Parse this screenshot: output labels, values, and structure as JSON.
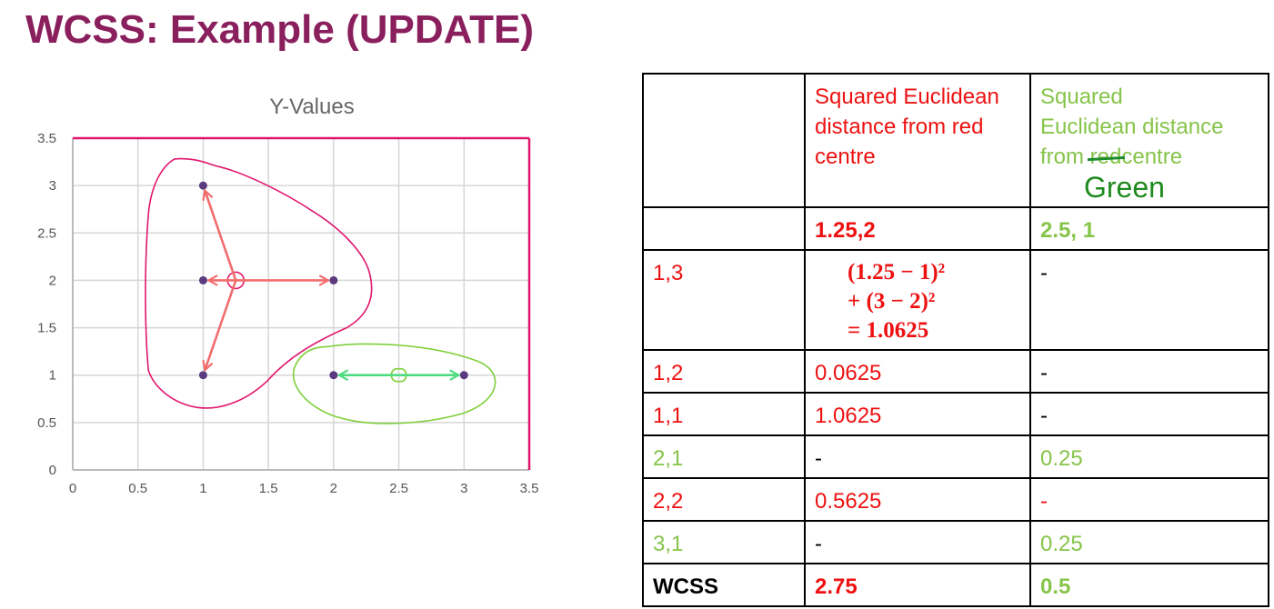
{
  "slide": {
    "title": "WCSS: Example (UPDATE)"
  },
  "chart_data": {
    "type": "scatter",
    "title": "Y-Values",
    "xlabel": "",
    "ylabel": "",
    "xlim": [
      0,
      3.5
    ],
    "ylim": [
      0,
      3.5
    ],
    "xticks": [
      "0",
      "0.5",
      "1",
      "1.5",
      "2",
      "2.5",
      "3",
      "3.5"
    ],
    "yticks": [
      "0",
      "0.5",
      "1",
      "1.5",
      "2",
      "2.5",
      "3",
      "3.5"
    ],
    "grid": true,
    "points": [
      {
        "x": 1,
        "y": 3
      },
      {
        "x": 1,
        "y": 2
      },
      {
        "x": 1,
        "y": 1
      },
      {
        "x": 2,
        "y": 2
      },
      {
        "x": 2,
        "y": 1
      },
      {
        "x": 3,
        "y": 1
      }
    ],
    "point_color": "#5b3a80",
    "axis_box_color": "#e0176e",
    "annotations": {
      "red_centre": {
        "x": 1.25,
        "y": 2
      },
      "green_centre": {
        "x": 2.5,
        "y": 1
      },
      "red_arrows_to": [
        {
          "x": 1,
          "y": 3
        },
        {
          "x": 1,
          "y": 2
        },
        {
          "x": 1,
          "y": 1
        },
        {
          "x": 2,
          "y": 2
        }
      ],
      "green_arrows_to": [
        {
          "x": 2,
          "y": 1
        },
        {
          "x": 3,
          "y": 1
        }
      ],
      "red_ink": "#f26d6d",
      "green_ink": "#4fdc80",
      "red_outline": "#e0176e",
      "green_outline": "#7fcf3a"
    }
  },
  "table": {
    "header": {
      "red_col": "Squared Euclidean distance from red centre",
      "green_col_line1": "Squared",
      "green_col_line2": "Euclidean distance",
      "green_col_from": "from",
      "green_col_struck": "red",
      "green_col_tail": "centre",
      "green_col_handwritten": "Green"
    },
    "centres": {
      "red": "1.25,2",
      "green": "2.5, 1"
    },
    "math_row": {
      "point": "1,3",
      "line1": "(1.25 − 1)²",
      "line2": "+ (3 − 2)²",
      "line3": "=  1.0625",
      "green_value": "-"
    },
    "rows": [
      {
        "point": "1,2",
        "red": "0.0625",
        "green": "-"
      },
      {
        "point": "1,1",
        "red": "1.0625",
        "green": "-"
      },
      {
        "point": "2,1",
        "red": "-",
        "green": "0.25"
      },
      {
        "point": "2,2",
        "red": "0.5625",
        "green": "-"
      },
      {
        "point": "3,1",
        "red": "-",
        "green": "0.25"
      }
    ],
    "wcss": {
      "label": "WCSS",
      "red": "2.75",
      "green": "0.5"
    }
  }
}
